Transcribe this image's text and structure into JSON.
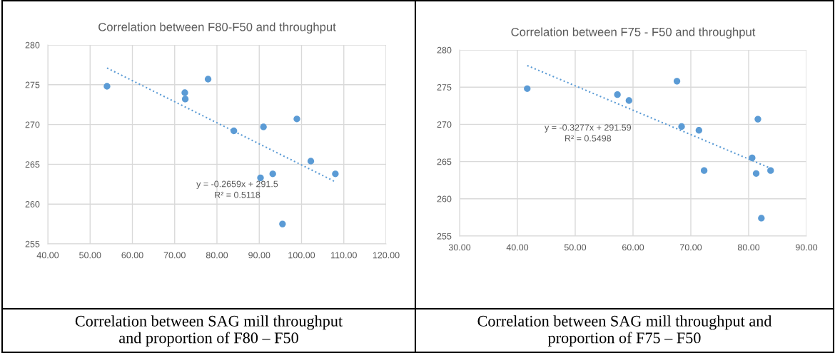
{
  "chart_data": [
    {
      "type": "scatter",
      "title": "Correlation between F80-F50 and throughput",
      "grid": true,
      "xlim": [
        40,
        120
      ],
      "xticks": [
        {
          "value": 40,
          "label": "40.00"
        },
        {
          "value": 50,
          "label": "50.00"
        },
        {
          "value": 60,
          "label": "60.00"
        },
        {
          "value": 70,
          "label": "70.00"
        },
        {
          "value": 80,
          "label": "80.00"
        },
        {
          "value": 90,
          "label": "90.00"
        },
        {
          "value": 100,
          "label": "100.00"
        },
        {
          "value": 110,
          "label": "110.00"
        },
        {
          "value": 120,
          "label": "120.00"
        }
      ],
      "ylim": [
        255,
        280
      ],
      "yticks": [
        255,
        260,
        265,
        270,
        275,
        280
      ],
      "series": [
        {
          "marker": "circle",
          "color": "#5b9bd5",
          "x": [
            54.0,
            72.4,
            72.5,
            77.9,
            84.0,
            91.0,
            98.9,
            102.2,
            90.3,
            93.2,
            108.0,
            95.5
          ],
          "values": [
            274.8,
            274.0,
            273.2,
            275.7,
            269.2,
            269.7,
            270.7,
            265.4,
            263.3,
            263.8,
            263.8,
            257.5
          ]
        },
        {
          "type": "line",
          "marker": "none",
          "color": "#5b9bd5",
          "line_style": "dotted",
          "x": [
            54.0,
            108.0
          ],
          "values": [
            277.1,
            262.8
          ]
        }
      ],
      "annotations": [
        "y = -0.2659x + 291.5\nR² = 0.5118",
        "Correlation between SAG mill throughput\nand proportion of F80 – F50"
      ]
    },
    {
      "type": "scatter",
      "title": "Correlation between F75 - F50 and throughput",
      "grid": true,
      "xlim": [
        30,
        90
      ],
      "xticks": [
        {
          "value": 30,
          "label": "30.00"
        },
        {
          "value": 40,
          "label": "40.00"
        },
        {
          "value": 50,
          "label": "50.00"
        },
        {
          "value": 60,
          "label": "60.00"
        },
        {
          "value": 70,
          "label": "70.00"
        },
        {
          "value": 80,
          "label": "80.00"
        },
        {
          "value": 90,
          "label": "90.00"
        }
      ],
      "ylim": [
        255,
        280
      ],
      "yticks": [
        255,
        260,
        265,
        270,
        275,
        280
      ],
      "series": [
        {
          "marker": "circle",
          "color": "#5b9bd5",
          "x": [
            41.7,
            57.3,
            59.3,
            67.6,
            68.4,
            71.4,
            72.3,
            81.6,
            80.6,
            81.3,
            83.8,
            82.2
          ],
          "values": [
            274.8,
            274.0,
            273.2,
            275.8,
            269.7,
            269.2,
            263.8,
            270.7,
            265.5,
            263.4,
            263.8,
            257.4
          ]
        },
        {
          "type": "line",
          "marker": "none",
          "color": "#5b9bd5",
          "line_style": "dotted",
          "x": [
            41.7,
            83.8
          ],
          "values": [
            277.9,
            264.1
          ]
        }
      ],
      "annotations": [
        "y = -0.3277x + 291.59\nR² = 0.5498",
        "Correlation between SAG mill throughput and\nproportion of F75 – F50"
      ]
    }
  ]
}
